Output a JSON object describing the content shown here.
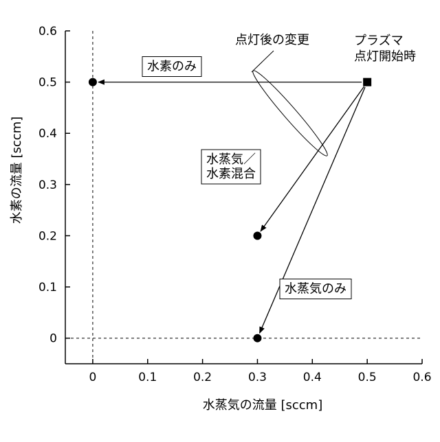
{
  "chart_data": {
    "type": "scatter",
    "title": "",
    "xlabel": "水蒸気の流量 [sccm]",
    "ylabel": "水素の流量 [sccm]",
    "xlim": [
      -0.05,
      0.6
    ],
    "ylim": [
      -0.05,
      0.6
    ],
    "x_ticks": [
      "0",
      "0.1",
      "0.2",
      "0.3",
      "0.4",
      "0.5",
      "0.6"
    ],
    "y_ticks": [
      "0",
      "0.1",
      "0.2",
      "0.3",
      "0.4",
      "0.5",
      "0.6"
    ],
    "grid": false,
    "reference_lines": [
      {
        "axis": "x",
        "value": 0,
        "style": "dashed"
      },
      {
        "axis": "y",
        "value": 0,
        "style": "dashed"
      }
    ],
    "start_point": {
      "x": 0.5,
      "y": 0.5,
      "marker": "square",
      "label": "プラズマ\n点灯開始時"
    },
    "points": [
      {
        "x": 0,
        "y": 0.5,
        "marker": "circle"
      },
      {
        "x": 0.3,
        "y": 0.2,
        "marker": "circle"
      },
      {
        "x": 0.3,
        "y": 0,
        "marker": "circle"
      }
    ],
    "transitions": [
      {
        "from": [
          0.5,
          0.5
        ],
        "to": [
          0,
          0.5
        ],
        "label": "水素のみ"
      },
      {
        "from": [
          0.5,
          0.5
        ],
        "to": [
          0.3,
          0.2
        ],
        "label": "水蒸気／\n水素混合"
      },
      {
        "from": [
          0.5,
          0.5
        ],
        "to": [
          0.3,
          0
        ],
        "label": "水蒸気のみ"
      }
    ],
    "annotation": "点灯後の変更"
  }
}
